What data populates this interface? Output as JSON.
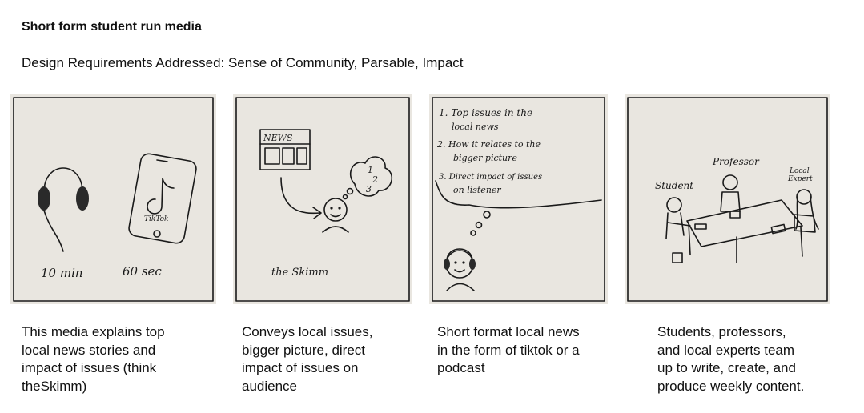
{
  "header": {
    "title": "Short form student run media",
    "subtitle": "Design Requirements Addressed: Sense of Community, Parsable, Impact"
  },
  "panels": [
    {
      "sketch_labels": {
        "left_duration": "10 min",
        "right_duration": "60 sec",
        "phone_app": "TikTok"
      },
      "caption_lines": [
        "This media explains top",
        "local news stories and",
        "impact of issues (think",
        "theSkimm)"
      ]
    },
    {
      "sketch_labels": {
        "newspaper": "NEWS",
        "brand": "the Skimm",
        "thought_1": "1",
        "thought_2": "2",
        "thought_3": "3"
      },
      "caption_lines": [
        "Conveys local issues,",
        "bigger picture, direct",
        "impact of issues on",
        "audience"
      ]
    },
    {
      "sketch_labels": {
        "item_1a": "1. Top issues in the",
        "item_1b": "local news",
        "item_2a": "2. How it relates to the",
        "item_2b": "bigger picture",
        "item_3a": "3. Direct impact of issues",
        "item_3b": "on listener"
      },
      "caption_lines": [
        "Short format local news",
        "in the form of tiktok or a",
        "podcast"
      ]
    },
    {
      "sketch_labels": {
        "student": "Student",
        "professor": "Professor",
        "expert_a": "Local",
        "expert_b": "Expert"
      },
      "caption_lines": [
        "Students, professors,",
        "and local experts team",
        "up to write, create, and",
        "produce weekly content."
      ]
    }
  ]
}
